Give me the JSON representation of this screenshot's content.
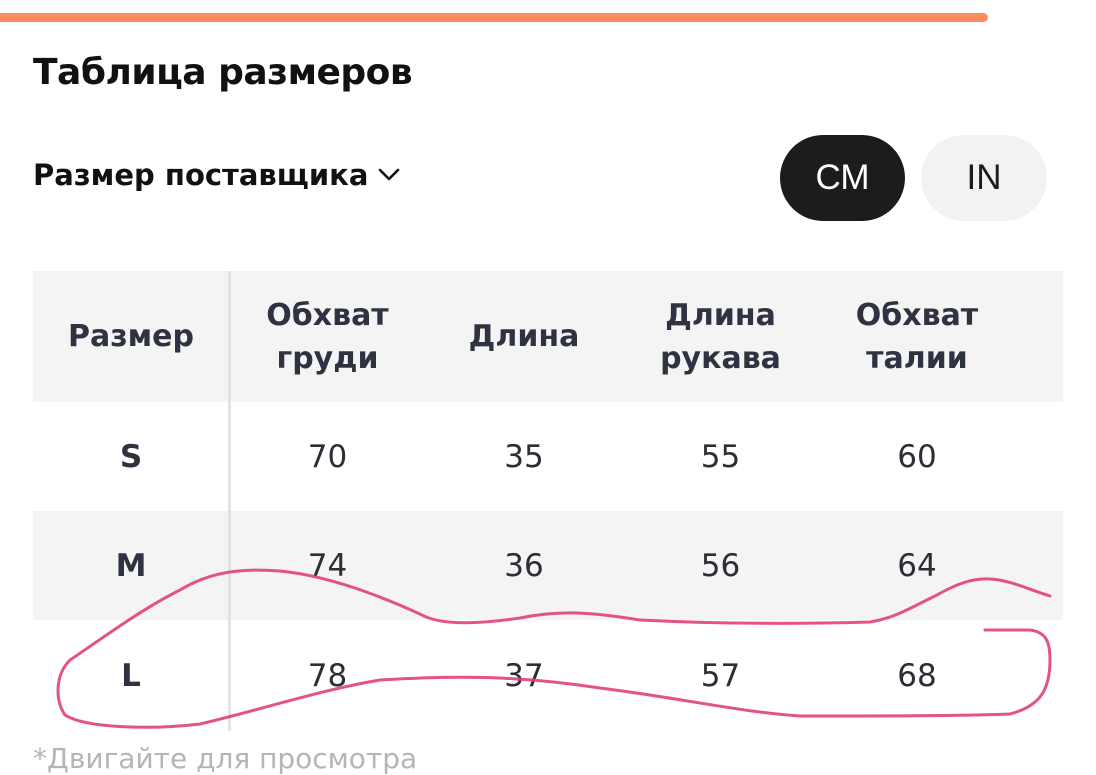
{
  "progress": {
    "value": 0.9,
    "color": "#ff8c5e"
  },
  "title": "Таблица размеров",
  "supplier_size": {
    "label": "Размер поставщика",
    "icon": "chevron-down-icon"
  },
  "units": {
    "cm": "СМ",
    "in": "IN",
    "selected": "cm"
  },
  "table": {
    "headers": [
      "Размер",
      "Обхват\nгруди",
      "Длина",
      "Длина\nрукава",
      "Обхват\nталии"
    ],
    "rows": [
      {
        "size": "S",
        "values": [
          "70",
          "35",
          "55",
          "60"
        ]
      },
      {
        "size": "M",
        "values": [
          "74",
          "36",
          "56",
          "64"
        ]
      },
      {
        "size": "L",
        "values": [
          "78",
          "37",
          "57",
          "68"
        ]
      }
    ]
  },
  "footnote": "*Двигайте для просмотра",
  "colors": {
    "accent": "#ff8c5e",
    "scribble": "#e0407a",
    "selected_bg": "#1c1c1c"
  }
}
